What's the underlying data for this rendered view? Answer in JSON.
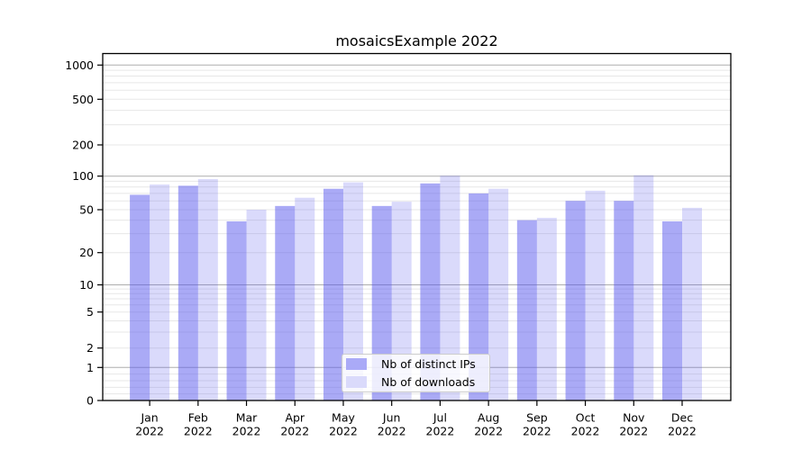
{
  "chart_data": {
    "type": "bar",
    "title": "mosaicsExample 2022",
    "categories": [
      "Jan",
      "Feb",
      "Mar",
      "Apr",
      "May",
      "Jun",
      "Jul",
      "Aug",
      "Sep",
      "Oct",
      "Nov",
      "Dec"
    ],
    "category_year": "2022",
    "series": [
      {
        "name": "Nb of distinct IPs",
        "color": "#5555ee",
        "opacity": 0.5,
        "values": [
          68,
          82,
          39,
          54,
          77,
          54,
          86,
          70,
          40,
          60,
          60,
          39
        ]
      },
      {
        "name": "Nb of downloads",
        "color": "#5555ee",
        "opacity": 0.22,
        "values": [
          84,
          94,
          50,
          64,
          88,
          59,
          101,
          77,
          42,
          74,
          102,
          52
        ]
      }
    ],
    "y_axis": {
      "scale": "symlog",
      "ticks": [
        0,
        1,
        2,
        5,
        10,
        20,
        50,
        100,
        200,
        500,
        1000
      ],
      "range": [
        0,
        1300
      ]
    },
    "x_axis": {
      "tick_label_line2": "2022"
    },
    "grid": {
      "major_color": "#adadad",
      "minor_color": "#e7e7e7"
    },
    "legend": {
      "position": "lower center"
    },
    "background": "#ffffff",
    "axis_color": "#000000"
  }
}
